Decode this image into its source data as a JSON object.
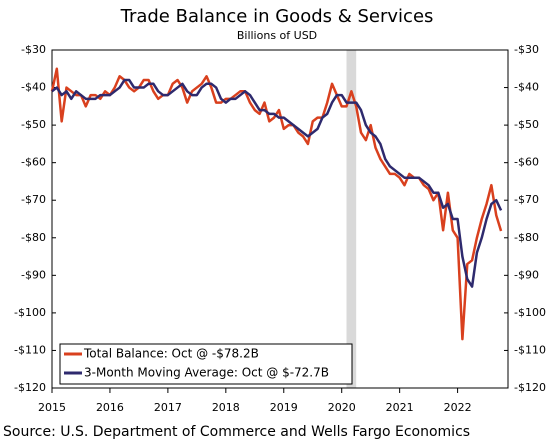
{
  "chart_data": {
    "type": "line",
    "title": "Trade Balance in Goods & Services",
    "subtitle": "Billions of USD",
    "source": "Source: U.S. Department of Commerce and Wells Fargo Economics",
    "x": [
      2015,
      2015.083,
      2015.167,
      2015.25,
      2015.333,
      2015.417,
      2015.5,
      2015.583,
      2015.667,
      2015.75,
      2015.833,
      2015.917,
      2016,
      2016.083,
      2016.167,
      2016.25,
      2016.333,
      2016.417,
      2016.5,
      2016.583,
      2016.667,
      2016.75,
      2016.833,
      2016.917,
      2017,
      2017.083,
      2017.167,
      2017.25,
      2017.333,
      2017.417,
      2017.5,
      2017.583,
      2017.667,
      2017.75,
      2017.833,
      2017.917,
      2018,
      2018.083,
      2018.167,
      2018.25,
      2018.333,
      2018.417,
      2018.5,
      2018.583,
      2018.667,
      2018.75,
      2018.833,
      2018.917,
      2019,
      2019.083,
      2019.167,
      2019.25,
      2019.333,
      2019.417,
      2019.5,
      2019.583,
      2019.667,
      2019.75,
      2019.833,
      2019.917,
      2020,
      2020.083,
      2020.167,
      2020.25,
      2020.333,
      2020.417,
      2020.5,
      2020.583,
      2020.667,
      2020.75,
      2020.833,
      2020.917,
      2021,
      2021.083,
      2021.167,
      2021.25,
      2021.333,
      2021.417,
      2021.5,
      2021.583,
      2021.667,
      2021.75,
      2021.833,
      2021.917,
      2022,
      2022.083,
      2022.167,
      2022.25,
      2022.333,
      2022.417,
      2022.5,
      2022.583,
      2022.667,
      2022.75
    ],
    "series": [
      {
        "name": "Total Balance: Oct @ -$78.2B",
        "color": "#d9401e",
        "values": [
          -41,
          -35,
          -49,
          -40,
          -41,
          -42,
          -42,
          -45,
          -42,
          -42,
          -43,
          -41,
          -42,
          -40,
          -37,
          -38,
          -40,
          -41,
          -40,
          -38,
          -38,
          -41,
          -43,
          -42,
          -42,
          -39,
          -38,
          -40,
          -44,
          -41,
          -40,
          -39,
          -37,
          -40,
          -44,
          -44,
          -43,
          -43,
          -42,
          -41,
          -41,
          -44,
          -46,
          -47,
          -44,
          -49,
          -48,
          -46,
          -51,
          -50,
          -50,
          -52,
          -53,
          -55,
          -49,
          -48,
          -48,
          -44,
          -39,
          -42,
          -45,
          -45,
          -41,
          -45,
          -52,
          -54,
          -50,
          -56,
          -59,
          -61,
          -63,
          -63,
          -64,
          -66,
          -63,
          -64,
          -64,
          -66,
          -67,
          -70,
          -68,
          -78,
          -68,
          -78,
          -80,
          -107,
          -87,
          -86,
          -80,
          -75,
          -71,
          -66,
          -74,
          -78.2
        ]
      },
      {
        "name": "3-Month Moving Average: Oct @ $-72.7B",
        "color": "#2e2a6e",
        "values": [
          -41,
          -40,
          -42,
          -41,
          -43,
          -41,
          -42,
          -43,
          -43,
          -43,
          -42,
          -42,
          -42,
          -41,
          -40,
          -38,
          -38,
          -40,
          -40,
          -40,
          -39,
          -39,
          -41,
          -42,
          -42,
          -41,
          -40,
          -39,
          -41,
          -42,
          -42,
          -40,
          -39,
          -39,
          -40,
          -43,
          -44,
          -43,
          -43,
          -42,
          -41,
          -42,
          -44,
          -46,
          -46,
          -47,
          -47,
          -48,
          -48,
          -49,
          -50,
          -51,
          -52,
          -53,
          -52,
          -51,
          -48,
          -47,
          -44,
          -42,
          -42,
          -44,
          -44,
          -44,
          -46,
          -50,
          -52,
          -53,
          -55,
          -59,
          -61,
          -62,
          -63,
          -64,
          -64,
          -64,
          -64,
          -65,
          -66,
          -68,
          -68,
          -72,
          -71,
          -75,
          -75,
          -85,
          -91,
          -93,
          -84,
          -80,
          -75,
          -71,
          -70,
          -72.7
        ]
      }
    ],
    "xlim": [
      2015,
      2022.87
    ],
    "xticks": [
      2015,
      2016,
      2017,
      2018,
      2019,
      2020,
      2021,
      2022
    ],
    "ylim": [
      -120,
      -30
    ],
    "yticks": [
      {
        "value": -120,
        "label": "-$120"
      },
      {
        "value": -110,
        "label": "-$110"
      },
      {
        "value": -100,
        "label": "-$100"
      },
      {
        "value": -90,
        "label": "-$90"
      },
      {
        "value": -80,
        "label": "-$80"
      },
      {
        "value": -70,
        "label": "-$70"
      },
      {
        "value": -60,
        "label": "-$60"
      },
      {
        "value": -50,
        "label": "-$50"
      },
      {
        "value": -40,
        "label": "-$40"
      },
      {
        "value": -30,
        "label": "-$30"
      }
    ],
    "y2lim": [
      -120,
      -30
    ],
    "y2ticks": [
      {
        "value": -120,
        "label": "-$120"
      },
      {
        "value": -110,
        "label": "-$110"
      },
      {
        "value": -100,
        "label": "-$100"
      },
      {
        "value": -90,
        "label": "-$90"
      },
      {
        "value": -80,
        "label": "-$80"
      },
      {
        "value": -70,
        "label": "-$70"
      },
      {
        "value": -60,
        "label": "-$60"
      },
      {
        "value": -50,
        "label": "-$50"
      },
      {
        "value": -40,
        "label": "-$40"
      },
      {
        "value": -30,
        "label": "-$30"
      }
    ],
    "shaded_period": [
      2020.083,
      2020.25
    ],
    "shade_color": "#d9d9d9",
    "legend": "lower left",
    "grid": false
  }
}
